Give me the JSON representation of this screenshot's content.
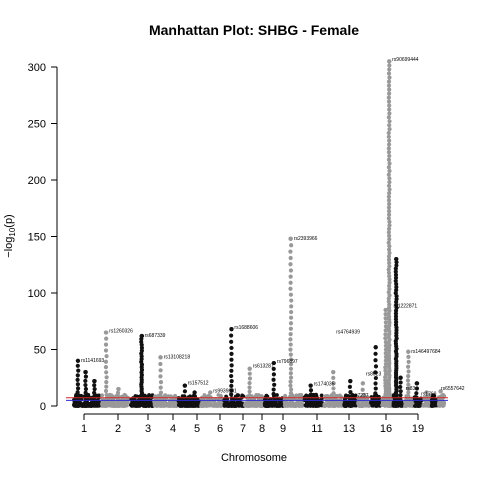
{
  "chart_data": {
    "type": "scatter",
    "title": "Manhattan Plot: SHBG - Female",
    "xlabel": "Chromosome",
    "ylabel_main": "−log",
    "ylabel_sub": "10",
    "ylabel_tail": "(p)",
    "ylim": [
      0,
      310
    ],
    "xlim": [
      0,
      23
    ],
    "grid": false,
    "y_ticks": [
      0,
      50,
      100,
      150,
      200,
      250,
      300
    ],
    "x_ticks": [
      {
        "label": "1",
        "x": 1.0
      },
      {
        "label": "2",
        "x": 3.0
      },
      {
        "label": "3",
        "x": 5.0
      },
      {
        "label": "4",
        "x": 6.85
      },
      {
        "label": "5",
        "x": 8.55
      },
      {
        "label": "6",
        "x": 10.1
      },
      {
        "label": "7",
        "x": 11.95
      },
      {
        "label": "8",
        "x": 13.55
      },
      {
        "label": "9",
        "x": 14.95
      },
      {
        "label": "11",
        "x": 17.2
      },
      {
        "label": "13",
        "x": 19.15
      },
      {
        "label": "16",
        "x": 22.0
      },
      {
        "label": "19",
        "x": 23.85
      }
    ],
    "threshold_lines": [
      {
        "name": "genome-wide",
        "y": 7.3,
        "color": "#d62728"
      },
      {
        "name": "suggestive",
        "y": 5.0,
        "color": "#2b2bd6"
      }
    ],
    "colors": {
      "odd": "#111111",
      "even": "#999999"
    },
    "chromosomes": [
      {
        "chr": 1,
        "start": 0.0,
        "end": 2.0
      },
      {
        "chr": 2,
        "start": 2.0,
        "end": 4.0
      },
      {
        "chr": 3,
        "start": 4.0,
        "end": 5.7
      },
      {
        "chr": 4,
        "start": 5.7,
        "end": 7.4
      },
      {
        "chr": 5,
        "start": 7.4,
        "end": 9.0
      },
      {
        "chr": 6,
        "start": 9.0,
        "end": 10.6
      },
      {
        "chr": 7,
        "start": 10.6,
        "end": 12.1
      },
      {
        "chr": 8,
        "start": 12.1,
        "end": 13.5
      },
      {
        "chr": 9,
        "start": 13.5,
        "end": 14.9
      },
      {
        "chr": 10,
        "start": 14.9,
        "end": 16.3
      },
      {
        "chr": 11,
        "start": 16.3,
        "end": 17.7
      },
      {
        "chr": 12,
        "start": 17.7,
        "end": 19.1
      },
      {
        "chr": 13,
        "start": 19.1,
        "end": 20.1
      },
      {
        "chr": 14,
        "start": 20.1,
        "end": 21.0
      },
      {
        "chr": 15,
        "start": 21.0,
        "end": 21.8
      },
      {
        "chr": 16,
        "start": 21.8,
        "end": 22.6
      },
      {
        "chr": 17,
        "start": 22.6,
        "end": 23.4
      },
      {
        "chr": 18,
        "start": 23.4,
        "end": 24.1
      },
      {
        "chr": 19,
        "start": 24.1,
        "end": 24.7
      },
      {
        "chr": 20,
        "start": 24.7,
        "end": 25.3
      },
      {
        "chr": 21,
        "start": 25.3,
        "end": 25.8
      },
      {
        "chr": 22,
        "start": 25.8,
        "end": 26.3
      }
    ],
    "peaks": [
      {
        "chr": 1,
        "x": 0.35,
        "ymax": 40,
        "n": 12
      },
      {
        "chr": 1,
        "x": 0.9,
        "ymax": 30,
        "n": 10
      },
      {
        "chr": 1,
        "x": 1.5,
        "ymax": 22,
        "n": 8
      },
      {
        "chr": 2,
        "x": 2.35,
        "ymax": 65,
        "n": 16
      },
      {
        "chr": 2,
        "x": 3.2,
        "ymax": 15,
        "n": 6
      },
      {
        "chr": 3,
        "x": 4.85,
        "ymax": 62,
        "n": 30
      },
      {
        "chr": 4,
        "x": 6.2,
        "ymax": 43,
        "n": 10
      },
      {
        "chr": 5,
        "x": 7.9,
        "ymax": 18,
        "n": 5
      },
      {
        "chr": 5,
        "x": 8.6,
        "ymax": 12,
        "n": 4
      },
      {
        "chr": 6,
        "x": 9.7,
        "ymax": 12,
        "n": 4
      },
      {
        "chr": 7,
        "x": 11.2,
        "ymax": 68,
        "n": 16
      },
      {
        "chr": 8,
        "x": 12.5,
        "ymax": 33,
        "n": 10
      },
      {
        "chr": 9,
        "x": 14.2,
        "ymax": 38,
        "n": 10
      },
      {
        "chr": 10,
        "x": 15.4,
        "ymax": 148,
        "n": 34
      },
      {
        "chr": 11,
        "x": 16.8,
        "ymax": 18,
        "n": 6
      },
      {
        "chr": 12,
        "x": 18.4,
        "ymax": 30,
        "n": 8
      },
      {
        "chr": 13,
        "x": 19.6,
        "ymax": 22,
        "n": 6
      },
      {
        "chr": 14,
        "x": 20.5,
        "ymax": 20,
        "n": 5
      },
      {
        "chr": 15,
        "x": 21.4,
        "ymax": 52,
        "n": 12
      },
      {
        "chr": 16,
        "x": 22.1,
        "ymax": 85,
        "n": 30
      },
      {
        "chr": 16,
        "x": 22.35,
        "ymax": 305,
        "n": 110
      },
      {
        "chr": 17,
        "x": 22.85,
        "ymax": 130,
        "n": 60
      },
      {
        "chr": 17,
        "x": 23.15,
        "ymax": 25,
        "n": 8
      },
      {
        "chr": 18,
        "x": 23.7,
        "ymax": 48,
        "n": 14
      },
      {
        "chr": 19,
        "x": 24.3,
        "ymax": 20,
        "n": 6
      },
      {
        "chr": 20,
        "x": 25.0,
        "ymax": 12,
        "n": 4
      },
      {
        "chr": 22,
        "x": 26.0,
        "ymax": 13,
        "n": 4
      }
    ],
    "annotations": [
      {
        "text": "rs1141693",
        "x": 0.35,
        "y": 40
      },
      {
        "text": "rs1260326",
        "x": 2.35,
        "y": 66
      },
      {
        "text": "rs687339",
        "x": 4.85,
        "y": 62
      },
      {
        "text": "rs13108218",
        "x": 6.2,
        "y": 43
      },
      {
        "text": "rs157512",
        "x": 7.9,
        "y": 20
      },
      {
        "text": "rs9939861",
        "x": 9.7,
        "y": 13
      },
      {
        "text": "rs1688606",
        "x": 11.2,
        "y": 69
      },
      {
        "text": "rs613287",
        "x": 12.5,
        "y": 35
      },
      {
        "text": "rs796897",
        "x": 14.2,
        "y": 39
      },
      {
        "text": "rs2393966",
        "x": 15.4,
        "y": 148
      },
      {
        "text": "rs174035",
        "x": 16.8,
        "y": 19
      },
      {
        "text": "rs4764939",
        "x": 18.4,
        "y": 65
      },
      {
        "text": "rs7237",
        "x": 19.6,
        "y": 9
      },
      {
        "text": "rs8023",
        "x": 20.5,
        "y": 28
      },
      {
        "text": "rs90699444",
        "x": 22.35,
        "y": 306
      },
      {
        "text": "rs1222871",
        "x": 22.45,
        "y": 88
      },
      {
        "text": "rs146497684",
        "x": 23.7,
        "y": 48
      },
      {
        "text": "rs83",
        "x": 23.3,
        "y": 15
      },
      {
        "text": "rs6557642",
        "x": 25.8,
        "y": 15
      },
      {
        "text": "rs1769",
        "x": 24.4,
        "y": 10
      }
    ]
  }
}
